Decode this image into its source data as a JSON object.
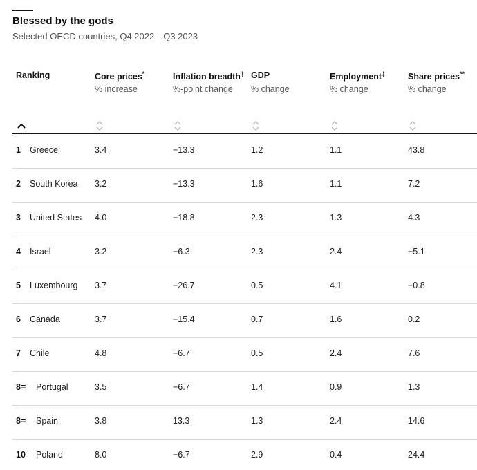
{
  "title": "Blessed by the gods",
  "subtitle": "Selected OECD countries, Q4 2022—Q3 2023",
  "headers": [
    {
      "label": "Ranking",
      "sup": "",
      "unit": ""
    },
    {
      "label": "Core prices",
      "sup": "*",
      "unit": "% increase"
    },
    {
      "label": "Inflation breadth",
      "sup": "†",
      "unit": "%-point change"
    },
    {
      "label": "GDP",
      "sup": "",
      "unit": "% change"
    },
    {
      "label": "Employment",
      "sup": "‡",
      "unit": "% change"
    },
    {
      "label": "Share prices",
      "sup": "**",
      "unit": "% change"
    }
  ],
  "sort_icons": {
    "ranking": "chevron-up-icon",
    "columns": "sort-diamond-icon"
  },
  "colors": {
    "text": "#121212",
    "muted": "#555555",
    "rule": "#d8d8d8",
    "icon": "#bbbbbb"
  },
  "chart_data": {
    "type": "table",
    "title": "Blessed by the gods",
    "subtitle": "Selected OECD countries, Q4 2022—Q3 2023",
    "columns": [
      "Ranking",
      "Core prices*",
      "Inflation breadth†",
      "GDP",
      "Employment‡",
      "Share prices**"
    ],
    "rows": [
      {
        "rank": "1",
        "country": "Greece",
        "core": "3.4",
        "breadth": "−13.3",
        "gdp": "1.2",
        "emp": "1.1",
        "shares": "43.8"
      },
      {
        "rank": "2",
        "country": "South Korea",
        "core": "3.2",
        "breadth": "−13.3",
        "gdp": "1.6",
        "emp": "1.1",
        "shares": "7.2"
      },
      {
        "rank": "3",
        "country": "United States",
        "core": "4.0",
        "breadth": "−18.8",
        "gdp": "2.3",
        "emp": "1.3",
        "shares": "4.3"
      },
      {
        "rank": "4",
        "country": "Israel",
        "core": "3.2",
        "breadth": "−6.3",
        "gdp": "2.3",
        "emp": "2.4",
        "shares": "−5.1"
      },
      {
        "rank": "5",
        "country": "Luxembourg",
        "core": "3.7",
        "breadth": "−26.7",
        "gdp": "0.5",
        "emp": "4.1",
        "shares": "−0.8"
      },
      {
        "rank": "6",
        "country": "Canada",
        "core": "3.7",
        "breadth": "−15.4",
        "gdp": "0.7",
        "emp": "1.6",
        "shares": "0.2"
      },
      {
        "rank": "7",
        "country": "Chile",
        "core": "4.8",
        "breadth": "−6.7",
        "gdp": "0.5",
        "emp": "2.4",
        "shares": "7.6"
      },
      {
        "rank": "8=",
        "country": "Portugal",
        "core": "3.5",
        "breadth": "−6.7",
        "gdp": "1.4",
        "emp": "0.9",
        "shares": "1.3"
      },
      {
        "rank": "8=",
        "country": "Spain",
        "core": "3.8",
        "breadth": "13.3",
        "gdp": "1.3",
        "emp": "2.4",
        "shares": "14.6"
      },
      {
        "rank": "10",
        "country": "Poland",
        "core": "8.0",
        "breadth": "−6.7",
        "gdp": "2.9",
        "emp": "0.4",
        "shares": "24.4"
      }
    ]
  }
}
